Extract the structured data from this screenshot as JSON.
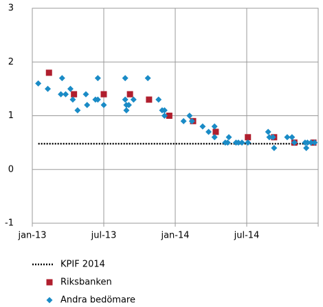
{
  "chart_data": {
    "type": "scatter",
    "xlim": [
      0,
      24
    ],
    "ylim": [
      -1,
      3
    ],
    "xticks": [
      {
        "value": 0,
        "label": "jan-13"
      },
      {
        "value": 6,
        "label": "jul-13"
      },
      {
        "value": 12,
        "label": "jan-14"
      },
      {
        "value": 18,
        "label": "jul-14"
      },
      {
        "value": 24,
        "label": null
      }
    ],
    "yticks": [
      -1,
      0,
      1,
      2,
      3
    ],
    "grid": true,
    "series": [
      {
        "name": "KPIF 2014",
        "marker": "dotted-line",
        "color": "#000000",
        "x": [
          0.5,
          23.7
        ],
        "values": [
          0.48,
          0.48
        ]
      },
      {
        "name": "Riksbanken",
        "marker": "square",
        "color": "#b01f2e",
        "x": [
          1.4,
          3.5,
          6.0,
          8.2,
          9.8,
          11.5,
          13.5,
          15.4,
          18.1,
          20.3,
          22.0,
          23.6
        ],
        "values": [
          1.8,
          1.4,
          1.4,
          1.4,
          1.3,
          1.0,
          0.9,
          0.7,
          0.6,
          0.6,
          0.5,
          0.5
        ]
      },
      {
        "name": "Andra bedömare",
        "marker": "diamond",
        "color": "#1a8bc6",
        "x": [
          0.5,
          1.3,
          2.5,
          2.4,
          2.8,
          3.2,
          3.4,
          3.8,
          4.5,
          4.6,
          5.3,
          5.5,
          5.5,
          6.0,
          7.8,
          7.8,
          7.9,
          7.9,
          8.1,
          8.5,
          9.7,
          10.6,
          10.9,
          11.1,
          11.1,
          12.7,
          13.2,
          13.4,
          14.3,
          14.8,
          15.3,
          15.3,
          16.2,
          16.4,
          16.5,
          17.1,
          17.3,
          17.6,
          18.1,
          19.8,
          19.9,
          20.2,
          20.3,
          21.4,
          21.8,
          22.0,
          22.9,
          23.0,
          23.1,
          23.4,
          23.7
        ],
        "values": [
          1.6,
          1.5,
          1.7,
          1.4,
          1.4,
          1.5,
          1.3,
          1.1,
          1.4,
          1.2,
          1.3,
          1.7,
          1.3,
          1.2,
          1.7,
          1.3,
          1.2,
          1.1,
          1.2,
          1.3,
          1.7,
          1.3,
          1.1,
          1.1,
          1.0,
          0.9,
          1.0,
          0.9,
          0.8,
          0.7,
          0.8,
          0.6,
          0.5,
          0.5,
          0.6,
          0.5,
          0.5,
          0.5,
          0.5,
          0.7,
          0.6,
          0.6,
          0.4,
          0.6,
          0.6,
          0.5,
          0.5,
          0.4,
          0.5,
          0.5,
          0.5
        ]
      }
    ]
  }
}
